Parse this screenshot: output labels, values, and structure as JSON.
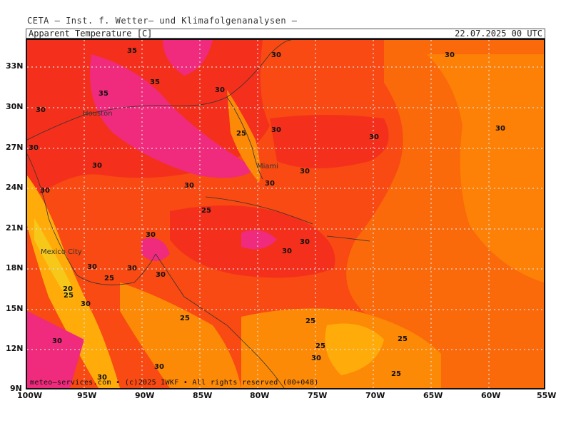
{
  "header": {
    "institute": "CETA – Inst. f. Wetter– und Klimafolgenanalysen –",
    "parameter": "Apparent Temperature [C]",
    "valid_time": "22.07.2025 00 UTC"
  },
  "footer": {
    "credit": "meteo–services.com • (c)2025 IWKF • All rights reserved (00+048)"
  },
  "axes": {
    "lat_labels": [
      "33N",
      "30N",
      "27N",
      "24N",
      "21N",
      "18N",
      "15N",
      "12N",
      "9N"
    ],
    "lon_labels": [
      "100W",
      "95W",
      "90W",
      "85W",
      "80W",
      "75W",
      "70W",
      "65W",
      "60W",
      "55W"
    ]
  },
  "cities": [
    "Houston",
    "Miami",
    "Mexico City"
  ],
  "contour_labels": [
    "35",
    "35",
    "35",
    "30",
    "30",
    "30",
    "25",
    "30",
    "30",
    "30",
    "30",
    "30",
    "30",
    "30",
    "30",
    "30",
    "30",
    "25",
    "30",
    "30",
    "30",
    "30",
    "25",
    "30",
    "20",
    "25",
    "30",
    "25",
    "30",
    "25",
    "25",
    "25",
    "30",
    "30",
    "25",
    "30",
    "30"
  ],
  "colors": {
    "magenta": "#f02a7c",
    "red": "#f4301c",
    "red_orange": "#f84a12",
    "orange": "#fb6a0a",
    "light_orange": "#fd8a06",
    "yellow_orange": "#ffac0a",
    "yellow": "#f6c81a"
  }
}
